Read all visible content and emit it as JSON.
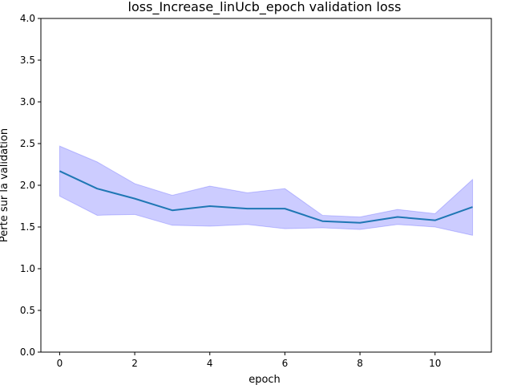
{
  "chart_data": {
    "type": "line",
    "title": "loss_Increase_linUcb_epoch validation loss",
    "xlabel": "epoch",
    "ylabel": "Perte sur la validation",
    "xlim": [
      -0.5,
      11.5
    ],
    "ylim": [
      0.0,
      4.0
    ],
    "xticks": [
      0,
      2,
      4,
      6,
      8,
      10
    ],
    "yticks": [
      0.0,
      0.5,
      1.0,
      1.5,
      2.0,
      2.5,
      3.0,
      3.5,
      4.0
    ],
    "xtick_labels": [
      "0",
      "2",
      "4",
      "6",
      "8",
      "10"
    ],
    "ytick_labels": [
      "0.0",
      "0.5",
      "1.0",
      "1.5",
      "2.0",
      "2.5",
      "3.0",
      "3.5",
      "4.0"
    ],
    "grid": false,
    "legend": "none",
    "series": [
      {
        "x": [
          0,
          1,
          2,
          3,
          4,
          5,
          6,
          7,
          8,
          9,
          10,
          11
        ],
        "values": [
          2.17,
          1.96,
          1.84,
          1.7,
          1.75,
          1.72,
          1.72,
          1.57,
          1.55,
          1.62,
          1.58,
          1.74
        ],
        "lower": [
          1.87,
          1.64,
          1.65,
          1.52,
          1.51,
          1.53,
          1.48,
          1.49,
          1.47,
          1.53,
          1.5,
          1.4
        ],
        "upper": [
          2.47,
          2.28,
          2.02,
          1.88,
          1.99,
          1.91,
          1.96,
          1.64,
          1.62,
          1.71,
          1.66,
          2.07
        ],
        "line_color": "#1f77b4",
        "band_color": "#0000ff"
      }
    ]
  }
}
